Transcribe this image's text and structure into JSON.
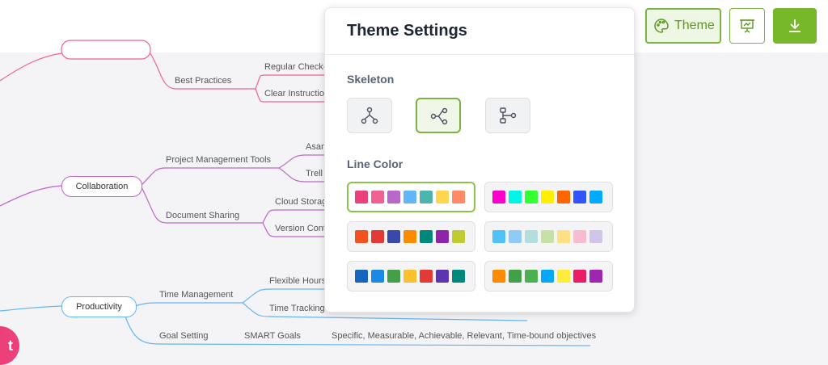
{
  "toolbar": {
    "theme_button": "Theme"
  },
  "theme_panel": {
    "title": "Theme Settings",
    "skeleton_label": "Skeleton",
    "selected_skeleton": 1,
    "line_color_label": "Line Color",
    "selected_palette": 0,
    "palettes": [
      [
        "#ec407a",
        "#f06292",
        "#ba68c8",
        "#64b5f6",
        "#4db6ac",
        "#ffd54f",
        "#ff8a65"
      ],
      [
        "#ff00cc",
        "#00f5e4",
        "#33ff33",
        "#ffee00",
        "#ff6600",
        "#3355ff",
        "#00aaff"
      ],
      [
        "#f4511e",
        "#e53935",
        "#3949ab",
        "#fb8c00",
        "#00897b",
        "#8e24aa",
        "#c0ca33"
      ],
      [
        "#4fc3f7",
        "#90caf9",
        "#b2dfdb",
        "#c5e1a5",
        "#ffe082",
        "#f8bbd0",
        "#d1c4e9"
      ],
      [
        "#1565c0",
        "#1e88e5",
        "#43a047",
        "#fbc02d",
        "#e53935",
        "#5e35b1",
        "#00897b"
      ],
      [
        "#fb8c00",
        "#43a047",
        "#4caf50",
        "#03a9f4",
        "#ffeb3b",
        "#e91e63",
        "#9c27b0"
      ]
    ]
  },
  "mindmap": {
    "labels": [
      "Best Practices",
      "Regular Check-",
      "Clear Instructio",
      "Project Management Tools",
      "Asan",
      "Trell",
      "Collaboration",
      "Document Sharing",
      "Cloud Storag",
      "Version Cont",
      "Productivity",
      "Time Management",
      "Flexible Hours",
      "Time Tracking",
      "Goal Setting",
      "SMART Goals",
      "Specific, Measurable, Achievable, Relevant, Time-bound objectives"
    ]
  },
  "floating_button": "t"
}
